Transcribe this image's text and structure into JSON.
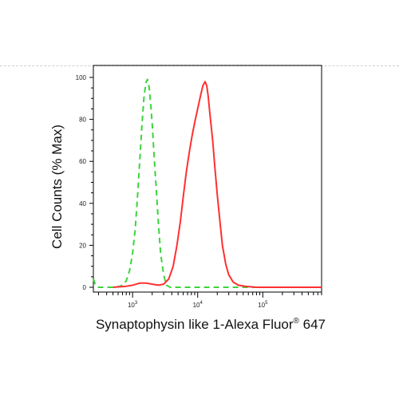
{
  "chart_data": {
    "type": "line",
    "title": "",
    "ylabel": "Cell Counts (% Max)",
    "xlabel": {
      "main": "Synaptophysin like 1-Alexa Fluor",
      "superscript": "®",
      "suffix": " 647"
    },
    "x_scale": "log",
    "xlim": [
      250,
      800000
    ],
    "ylim": [
      0,
      100
    ],
    "y_ticks": [
      0,
      20,
      40,
      60,
      80,
      100
    ],
    "x_ticks": [
      {
        "value": 1000,
        "base": "10",
        "exp": "3"
      },
      {
        "value": 10000,
        "base": "10",
        "exp": "4"
      },
      {
        "value": 100000,
        "base": "10",
        "exp": "5"
      }
    ],
    "grid": false,
    "legend": "none",
    "series": [
      {
        "color": "#3cd43c",
        "style": "dashed",
        "points": [
          [
            250,
            4
          ],
          [
            270,
            1
          ],
          [
            300,
            0
          ],
          [
            400,
            0
          ],
          [
            500,
            0
          ],
          [
            650,
            0.5
          ],
          [
            800,
            3
          ],
          [
            900,
            8
          ],
          [
            1000,
            16
          ],
          [
            1100,
            28
          ],
          [
            1200,
            45
          ],
          [
            1300,
            62
          ],
          [
            1400,
            78
          ],
          [
            1500,
            91
          ],
          [
            1620,
            98
          ],
          [
            1700,
            99
          ],
          [
            1800,
            95
          ],
          [
            1900,
            87
          ],
          [
            2000,
            78
          ],
          [
            2150,
            62
          ],
          [
            2300,
            48
          ],
          [
            2500,
            30
          ],
          [
            2700,
            16
          ],
          [
            3000,
            6
          ],
          [
            3300,
            1
          ],
          [
            3800,
            0
          ],
          [
            10000,
            0
          ],
          [
            100000,
            0
          ],
          [
            800000,
            0
          ]
        ]
      },
      {
        "color": "#ff3030",
        "style": "solid",
        "points": [
          [
            500,
            0
          ],
          [
            800,
            0.5
          ],
          [
            1000,
            1
          ],
          [
            1300,
            2
          ],
          [
            1600,
            2
          ],
          [
            2000,
            1.5
          ],
          [
            2500,
            1
          ],
          [
            3000,
            1.5
          ],
          [
            3600,
            4
          ],
          [
            4200,
            10
          ],
          [
            4800,
            20
          ],
          [
            5400,
            31
          ],
          [
            6000,
            43
          ],
          [
            6700,
            55
          ],
          [
            7500,
            65
          ],
          [
            8300,
            73
          ],
          [
            9200,
            80
          ],
          [
            10000,
            85
          ],
          [
            11000,
            91
          ],
          [
            12000,
            96
          ],
          [
            13000,
            98
          ],
          [
            13800,
            96
          ],
          [
            14500,
            91
          ],
          [
            15500,
            82
          ],
          [
            17000,
            70
          ],
          [
            18500,
            56
          ],
          [
            20000,
            44
          ],
          [
            22000,
            31
          ],
          [
            24000,
            20
          ],
          [
            27000,
            11
          ],
          [
            30000,
            6
          ],
          [
            35000,
            2.5
          ],
          [
            42000,
            1
          ],
          [
            55000,
            0.4
          ],
          [
            80000,
            0
          ],
          [
            800000,
            0
          ]
        ]
      }
    ]
  }
}
